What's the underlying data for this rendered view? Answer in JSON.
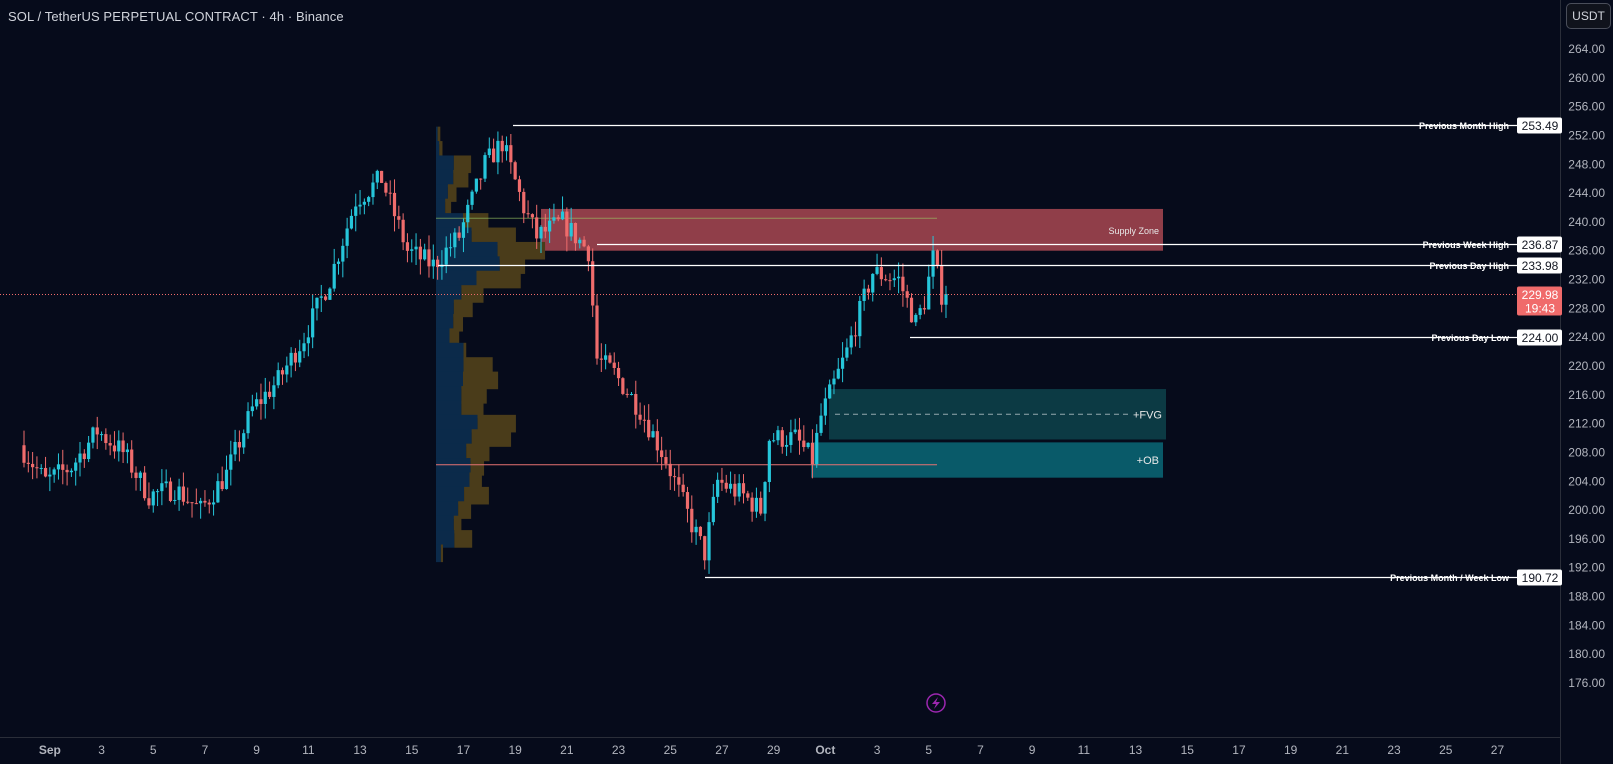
{
  "header": {
    "title": "SOL / TetherUS PERPETUAL CONTRACT · 4h · Binance",
    "currency": "USDT"
  },
  "colors": {
    "background": "#060b1b",
    "up": "#26c6da",
    "down": "#ef6c6c",
    "supply_zone": "#b34b55",
    "fvg": "#0d3d47",
    "ob": "#0b6877",
    "last_price_bg": "#f06b6b",
    "vp_buy": "#0b2a4a",
    "vp_sell": "#4a3c1a",
    "label_bg": "#ffffff"
  },
  "chart_data": {
    "type": "candlestick",
    "symbol": "SOL / TetherUS PERPETUAL CONTRACT",
    "timeframe": "4h",
    "exchange": "Binance",
    "ylim": [
      172,
      266
    ],
    "y_ticks": [
      "264.00",
      "260.00",
      "256.00",
      "252.00",
      "248.00",
      "244.00",
      "240.00",
      "236.00",
      "232.00",
      "228.00",
      "224.00",
      "220.00",
      "216.00",
      "212.00",
      "208.00",
      "204.00",
      "200.00",
      "196.00",
      "192.00",
      "188.00",
      "184.00",
      "180.00",
      "176.00"
    ],
    "x_ticks": [
      "Sep",
      "3",
      "5",
      "7",
      "9",
      "11",
      "13",
      "15",
      "17",
      "19",
      "21",
      "23",
      "25",
      "27",
      "29",
      "Oct",
      "3",
      "5",
      "7",
      "9",
      "11",
      "13",
      "15",
      "17",
      "19",
      "21",
      "23",
      "25",
      "27"
    ],
    "x_tick_dates": [
      "2025-09-01",
      "2025-09-03",
      "2025-09-05",
      "2025-09-07",
      "2025-09-09",
      "2025-09-11",
      "2025-09-13",
      "2025-09-15",
      "2025-09-17",
      "2025-09-19",
      "2025-09-21",
      "2025-09-23",
      "2025-09-25",
      "2025-09-27",
      "2025-09-29",
      "2025-10-01",
      "2025-10-03",
      "2025-10-05",
      "2025-10-07",
      "2025-10-09",
      "2025-10-11",
      "2025-10-13",
      "2025-10-15",
      "2025-10-17",
      "2025-10-19",
      "2025-10-21",
      "2025-10-23",
      "2025-10-25",
      "2025-10-27"
    ],
    "price_path": [
      {
        "date": "2025-08-31T00:00",
        "price": 209
      },
      {
        "date": "2025-09-01T00:00",
        "price": 204
      },
      {
        "date": "2025-09-02T00:00",
        "price": 206
      },
      {
        "date": "2025-09-03T00:00",
        "price": 211
      },
      {
        "date": "2025-09-04T00:00",
        "price": 208
      },
      {
        "date": "2025-09-05T00:00",
        "price": 202
      },
      {
        "date": "2025-09-06T00:00",
        "price": 203
      },
      {
        "date": "2025-09-07T00:00",
        "price": 200
      },
      {
        "date": "2025-09-08T00:00",
        "price": 205
      },
      {
        "date": "2025-09-09T00:00",
        "price": 214
      },
      {
        "date": "2025-09-10T00:00",
        "price": 218
      },
      {
        "date": "2025-09-11T00:00",
        "price": 224
      },
      {
        "date": "2025-09-12T00:00",
        "price": 232
      },
      {
        "date": "2025-09-13T00:00",
        "price": 243
      },
      {
        "date": "2025-09-14T00:00",
        "price": 246
      },
      {
        "date": "2025-09-15T00:00",
        "price": 236
      },
      {
        "date": "2025-09-16T00:00",
        "price": 234
      },
      {
        "date": "2025-09-17T00:00",
        "price": 238
      },
      {
        "date": "2025-09-18T00:00",
        "price": 248
      },
      {
        "date": "2025-09-18T16:00",
        "price": 251
      },
      {
        "date": "2025-09-19T12:00",
        "price": 242
      },
      {
        "date": "2025-09-20T00:00",
        "price": 238
      },
      {
        "date": "2025-09-21T00:00",
        "price": 240
      },
      {
        "date": "2025-09-22T00:00",
        "price": 236
      },
      {
        "date": "2025-09-22T08:00",
        "price": 221
      },
      {
        "date": "2025-09-23T00:00",
        "price": 219
      },
      {
        "date": "2025-09-24T00:00",
        "price": 214
      },
      {
        "date": "2025-09-25T00:00",
        "price": 207
      },
      {
        "date": "2025-09-26T00:00",
        "price": 198
      },
      {
        "date": "2025-09-26T12:00",
        "price": 194
      },
      {
        "date": "2025-09-27T00:00",
        "price": 204
      },
      {
        "date": "2025-09-28T00:00",
        "price": 202
      },
      {
        "date": "2025-09-28T16:00",
        "price": 200
      },
      {
        "date": "2025-09-29T00:00",
        "price": 210
      },
      {
        "date": "2025-09-30T00:00",
        "price": 210
      },
      {
        "date": "2025-09-30T16:00",
        "price": 207
      },
      {
        "date": "2025-10-01T00:00",
        "price": 213
      },
      {
        "date": "2025-10-02T00:00",
        "price": 222
      },
      {
        "date": "2025-10-03T00:00",
        "price": 233
      },
      {
        "date": "2025-10-04T00:00",
        "price": 232
      },
      {
        "date": "2025-10-04T16:00",
        "price": 226
      },
      {
        "date": "2025-10-05T00:00",
        "price": 229
      },
      {
        "date": "2025-10-05T08:00",
        "price": 235
      },
      {
        "date": "2025-10-05T16:00",
        "price": 229.98
      }
    ],
    "volume_profile": {
      "price_levels": [
        252,
        250,
        248,
        246,
        244,
        242,
        240,
        238,
        236,
        234,
        232,
        230,
        228,
        226,
        224,
        222,
        220,
        218,
        216,
        214,
        212,
        210,
        208,
        206,
        204,
        202,
        200,
        198,
        196,
        194,
        192
      ],
      "total_volume": [
        0.8,
        1.2,
        6.5,
        6.0,
        3.8,
        2.8,
        9.7,
        14.8,
        20.2,
        16.5,
        15.7,
        8.8,
        6.8,
        5.0,
        4.3,
        5.6,
        10.5,
        11.5,
        9.4,
        8.8,
        14.8,
        13.9,
        9.9,
        8.9,
        8.5,
        9.8,
        6.5,
        4.7,
        6.7,
        1.3,
        0
      ],
      "up_volume": [
        0.3,
        0.6,
        3.3,
        3.2,
        2.2,
        1.7,
        5.0,
        6.6,
        11.4,
        11.8,
        7.5,
        4.7,
        3.3,
        3.2,
        2.5,
        5.1,
        5.1,
        5.0,
        4.7,
        4.7,
        7.7,
        6.6,
        5.6,
        6.4,
        6.2,
        5.2,
        4.1,
        3.3,
        3.4,
        0.9,
        0
      ]
    },
    "levels": [
      {
        "name": "Previous Month High",
        "value": 253.49,
        "label": "253.49"
      },
      {
        "name": "Previous Week High",
        "value": 236.87,
        "label": "236.87"
      },
      {
        "name": "Previous Day High",
        "value": 233.98,
        "label": "233.98"
      },
      {
        "name": "Previous Day Low",
        "value": 224.0,
        "label": "224.00"
      },
      {
        "name": "Previous Month / Week Low",
        "value": 190.72,
        "label": "190.72"
      }
    ],
    "zones": [
      {
        "name": "Supply Zone",
        "from": 236.0,
        "to": 241.8
      },
      {
        "name": "+FVG",
        "from": 209.8,
        "to": 216.8
      },
      {
        "name": "+OB",
        "from": 204.5,
        "to": 209.4
      }
    ],
    "last_price": "229.98",
    "countdown": "19:43"
  }
}
